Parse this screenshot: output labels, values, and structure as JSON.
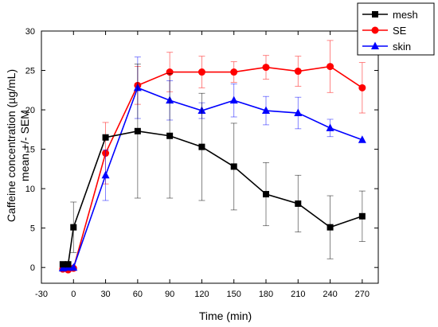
{
  "chart_data": {
    "type": "line",
    "title": "",
    "xlabel": "Time (min)",
    "ylabel_line1": "Caffeine concentration (µg/mL)",
    "ylabel_line2": "mean +/- SEM",
    "xlim": [
      -30,
      285
    ],
    "ylim": [
      -2,
      30
    ],
    "xticks": [
      -30,
      0,
      30,
      60,
      90,
      120,
      150,
      180,
      210,
      240,
      270
    ],
    "yticks": [
      0,
      5,
      10,
      15,
      20,
      25,
      30
    ],
    "grid": false,
    "legend_position": "top-right",
    "series": [
      {
        "name": "mesh",
        "color": "#000000",
        "marker": "square",
        "points": [
          {
            "x": -10,
            "y": 0.4,
            "err": 0
          },
          {
            "x": -5,
            "y": 0.4,
            "err": 0
          },
          {
            "x": 0,
            "y": 5.1,
            "err": 3.2
          },
          {
            "x": 30,
            "y": 16.5,
            "err": 0
          },
          {
            "x": 60,
            "y": 17.3,
            "err": 8.5
          },
          {
            "x": 90,
            "y": 16.7,
            "err": 7.9
          },
          {
            "x": 120,
            "y": 15.3,
            "err": 6.8
          },
          {
            "x": 150,
            "y": 12.8,
            "err": 5.5
          },
          {
            "x": 180,
            "y": 9.3,
            "err": 4.0
          },
          {
            "x": 210,
            "y": 8.1,
            "err": 3.6
          },
          {
            "x": 240,
            "y": 5.1,
            "err": 4.0
          },
          {
            "x": 270,
            "y": 6.5,
            "err": 3.2
          }
        ]
      },
      {
        "name": "SE",
        "color": "#ff0000",
        "marker": "circle",
        "points": [
          {
            "x": -10,
            "y": -0.2,
            "err": 0
          },
          {
            "x": -5,
            "y": -0.3,
            "err": 0
          },
          {
            "x": 0,
            "y": -0.1,
            "err": 0
          },
          {
            "x": 30,
            "y": 14.5,
            "err": 3.9
          },
          {
            "x": 60,
            "y": 23.1,
            "err": 2.4
          },
          {
            "x": 90,
            "y": 24.8,
            "err": 2.5
          },
          {
            "x": 120,
            "y": 24.8,
            "err": 2.0
          },
          {
            "x": 150,
            "y": 24.8,
            "err": 1.3
          },
          {
            "x": 180,
            "y": 25.4,
            "err": 1.5
          },
          {
            "x": 210,
            "y": 24.9,
            "err": 1.9
          },
          {
            "x": 240,
            "y": 25.5,
            "err": 3.3
          },
          {
            "x": 270,
            "y": 22.8,
            "err": 3.2
          }
        ]
      },
      {
        "name": "skin",
        "color": "#0000ff",
        "marker": "triangle",
        "points": [
          {
            "x": -10,
            "y": -0.1,
            "err": 0
          },
          {
            "x": -5,
            "y": 0.0,
            "err": 0
          },
          {
            "x": 0,
            "y": 0.0,
            "err": 0
          },
          {
            "x": 30,
            "y": 11.7,
            "err": 3.2
          },
          {
            "x": 60,
            "y": 22.8,
            "err": 3.9
          },
          {
            "x": 90,
            "y": 21.2,
            "err": 2.5
          },
          {
            "x": 120,
            "y": 19.9,
            "err": 1.0
          },
          {
            "x": 150,
            "y": 21.2,
            "err": 2.1
          },
          {
            "x": 180,
            "y": 19.9,
            "err": 1.8
          },
          {
            "x": 210,
            "y": 19.6,
            "err": 2.0
          },
          {
            "x": 240,
            "y": 17.7,
            "err": 1.1
          },
          {
            "x": 270,
            "y": 16.2,
            "err": 0
          }
        ]
      }
    ]
  }
}
